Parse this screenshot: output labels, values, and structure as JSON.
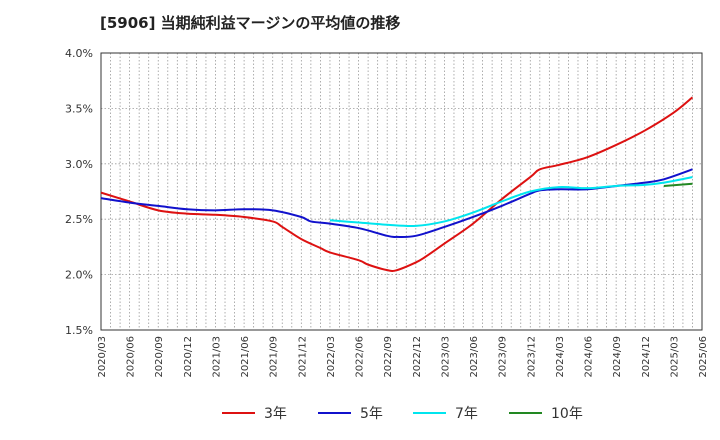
{
  "chart_data": {
    "type": "line",
    "title": "[5906]  当期純利益マージンの平均値の推移",
    "xlabel": "",
    "ylabel": "",
    "ylim": [
      1.5,
      4.0
    ],
    "y_unit": "%",
    "yticks": [
      "1.5%",
      "2.0%",
      "2.5%",
      "3.0%",
      "3.5%",
      "4.0%"
    ],
    "ytick_values": [
      1.5,
      2.0,
      2.5,
      3.0,
      3.5,
      4.0
    ],
    "x_labels": [
      "2020/03",
      "2020/06",
      "2020/09",
      "2020/12",
      "2021/03",
      "2021/06",
      "2021/09",
      "2021/12",
      "2022/03",
      "2022/06",
      "2022/09",
      "2022/12",
      "2023/03",
      "2023/06",
      "2023/09",
      "2023/12",
      "2024/03",
      "2024/06",
      "2024/09",
      "2024/12",
      "2025/03",
      "2025/06"
    ],
    "grid": true,
    "legend_position": "bottom",
    "series": [
      {
        "name": "3年",
        "color": "#dd1111",
        "points": [
          [
            "2020/03",
            2.74
          ],
          [
            "2020/06",
            2.66
          ],
          [
            "2020/09",
            2.58
          ],
          [
            "2020/12",
            2.55
          ],
          [
            "2021/03",
            2.54
          ],
          [
            "2021/06",
            2.52
          ],
          [
            "2021/09",
            2.48
          ],
          [
            "2021/10",
            2.43
          ],
          [
            "2021/12",
            2.32
          ],
          [
            "2022/02",
            2.24
          ],
          [
            "2022/03",
            2.2
          ],
          [
            "2022/06",
            2.13
          ],
          [
            "2022/07",
            2.09
          ],
          [
            "2022/09",
            2.04
          ],
          [
            "2022/10",
            2.04
          ],
          [
            "2022/12",
            2.11
          ],
          [
            "2023/01",
            2.16
          ],
          [
            "2023/03",
            2.28
          ],
          [
            "2023/06",
            2.46
          ],
          [
            "2023/09",
            2.68
          ],
          [
            "2023/12",
            2.88
          ],
          [
            "2024/01",
            2.95
          ],
          [
            "2024/03",
            2.99
          ],
          [
            "2024/06",
            3.06
          ],
          [
            "2024/09",
            3.17
          ],
          [
            "2024/12",
            3.3
          ],
          [
            "2025/03",
            3.46
          ],
          [
            "2025/05",
            3.6
          ]
        ]
      },
      {
        "name": "5年",
        "color": "#1111cc",
        "points": [
          [
            "2020/03",
            2.69
          ],
          [
            "2020/06",
            2.65
          ],
          [
            "2020/09",
            2.62
          ],
          [
            "2020/12",
            2.59
          ],
          [
            "2021/03",
            2.58
          ],
          [
            "2021/06",
            2.59
          ],
          [
            "2021/09",
            2.58
          ],
          [
            "2021/12",
            2.52
          ],
          [
            "2022/01",
            2.48
          ],
          [
            "2022/03",
            2.46
          ],
          [
            "2022/06",
            2.42
          ],
          [
            "2022/09",
            2.35
          ],
          [
            "2022/10",
            2.34
          ],
          [
            "2022/12",
            2.35
          ],
          [
            "2023/03",
            2.43
          ],
          [
            "2023/06",
            2.52
          ],
          [
            "2023/09",
            2.62
          ],
          [
            "2023/12",
            2.73
          ],
          [
            "2024/01",
            2.76
          ],
          [
            "2024/03",
            2.77
          ],
          [
            "2024/06",
            2.77
          ],
          [
            "2024/09",
            2.8
          ],
          [
            "2024/12",
            2.83
          ],
          [
            "2025/02",
            2.86
          ],
          [
            "2025/05",
            2.95
          ]
        ]
      },
      {
        "name": "7年",
        "color": "#00e5ee",
        "points": [
          [
            "2022/03",
            2.49
          ],
          [
            "2022/06",
            2.47
          ],
          [
            "2022/09",
            2.45
          ],
          [
            "2022/12",
            2.44
          ],
          [
            "2023/03",
            2.48
          ],
          [
            "2023/06",
            2.56
          ],
          [
            "2023/09",
            2.66
          ],
          [
            "2023/12",
            2.75
          ],
          [
            "2024/03",
            2.79
          ],
          [
            "2024/06",
            2.78
          ],
          [
            "2024/09",
            2.8
          ],
          [
            "2024/12",
            2.81
          ],
          [
            "2025/02",
            2.83
          ],
          [
            "2025/05",
            2.88
          ]
        ]
      },
      {
        "name": "10年",
        "color": "#228822",
        "points": [
          [
            "2025/02",
            2.8
          ],
          [
            "2025/05",
            2.82
          ]
        ]
      }
    ]
  }
}
